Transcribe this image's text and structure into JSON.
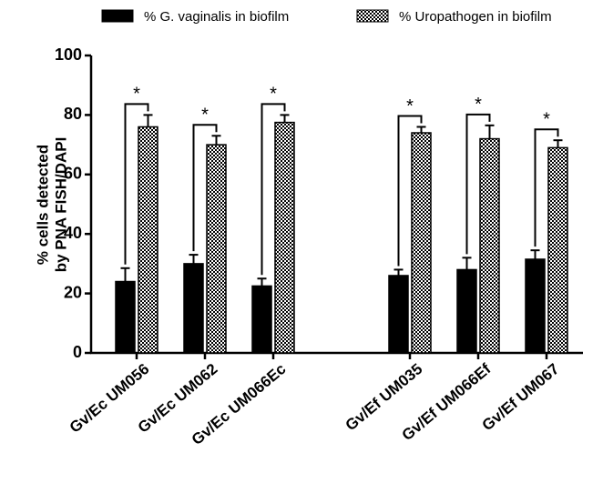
{
  "chart_data": {
    "type": "bar",
    "ylabel": [
      "% cells detected",
      "by  PNA FISH/DAPI"
    ],
    "categories": [
      "Gv/Ec UM056",
      "Gv/Ec UM062",
      "Gv/Ec UM066Ec",
      null,
      "Gv/Ef UM035",
      "Gv/Ef UM066Ef",
      "Gv/Ef UM067"
    ],
    "series": [
      {
        "name": "% G. vaginalis in biofilm",
        "color": "#000000",
        "pattern": "solid",
        "values": [
          24,
          30,
          22.5,
          null,
          26,
          28,
          31.5
        ],
        "errors": [
          4.5,
          3,
          2.5,
          null,
          2,
          4,
          3
        ]
      },
      {
        "name": "% Uropathogen in biofilm",
        "color": "#000000",
        "pattern": "checkered",
        "values": [
          76,
          70,
          77.5,
          null,
          74,
          72,
          69
        ],
        "errors": [
          4,
          3,
          2.5,
          null,
          2,
          4.5,
          2.5
        ]
      }
    ],
    "annotations": [
      "*",
      "*",
      "*",
      null,
      "*",
      "*",
      "*"
    ],
    "ylim": [
      0,
      100
    ],
    "yticks": [
      0,
      20,
      40,
      60,
      80,
      100
    ],
    "legend": "top"
  }
}
